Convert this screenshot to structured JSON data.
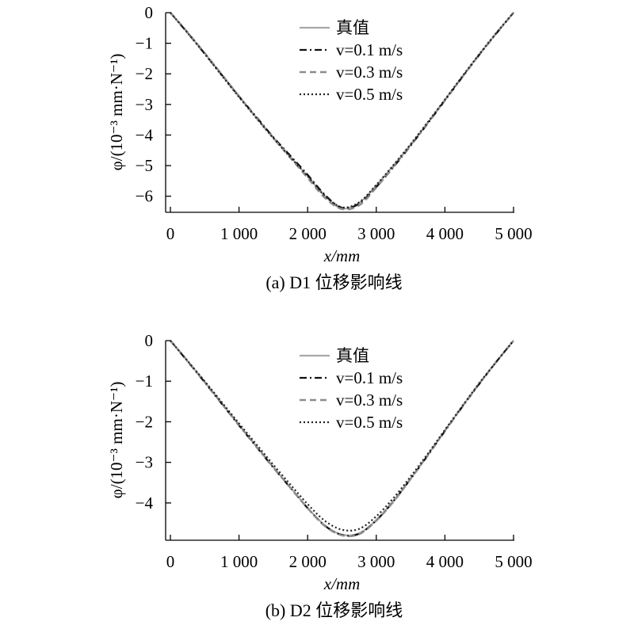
{
  "chart_data": [
    {
      "type": "line",
      "caption": "(a) D1 位移影响线",
      "xlabel": "x/mm",
      "ylabel": "φ/(10⁻³ mm·N⁻¹)",
      "xlim": [
        0,
        5000
      ],
      "ylim": [
        -6.5,
        0
      ],
      "xticks": [
        0,
        1000,
        2000,
        3000,
        4000,
        5000
      ],
      "xtick_labels": [
        "0",
        "1 000",
        "2 000",
        "3 000",
        "4 000",
        "5 000"
      ],
      "yticks": [
        0,
        -1,
        -2,
        -3,
        -4,
        -5,
        -6
      ],
      "ytick_labels": [
        "0",
        "−1",
        "−2",
        "−3",
        "−4",
        "−5",
        "−6"
      ],
      "grid": false,
      "legend_position": "top-center",
      "series": [
        {
          "name": "真值",
          "style": "solid",
          "color": "#a8a8a8",
          "x": [
            0,
            250,
            500,
            750,
            1000,
            1250,
            1500,
            1750,
            2000,
            2250,
            2500,
            2750,
            3000,
            3250,
            3500,
            3750,
            4000,
            4250,
            4500,
            4750,
            5000
          ],
          "y": [
            0,
            -0.65,
            -1.33,
            -2.03,
            -2.73,
            -3.42,
            -4.08,
            -4.72,
            -5.35,
            -6.0,
            -6.4,
            -6.22,
            -5.65,
            -5.0,
            -4.32,
            -3.6,
            -2.85,
            -2.1,
            -1.37,
            -0.67,
            0
          ]
        },
        {
          "name": "v=0.1 m/s",
          "style": "dashdot",
          "color": "#111111",
          "x": [
            0,
            250,
            500,
            750,
            1000,
            1250,
            1500,
            1750,
            2000,
            2250,
            2500,
            2750,
            3000,
            3250,
            3500,
            3750,
            4000,
            4250,
            4500,
            4750,
            5000
          ],
          "y": [
            0,
            -0.66,
            -1.34,
            -2.04,
            -2.74,
            -3.4,
            -4.07,
            -4.68,
            -5.3,
            -5.95,
            -6.38,
            -6.25,
            -5.7,
            -5.05,
            -4.35,
            -3.62,
            -2.87,
            -2.12,
            -1.38,
            -0.68,
            0
          ]
        },
        {
          "name": "v=0.3 m/s",
          "style": "dashed",
          "color": "#8c8c8c",
          "x": [
            0,
            250,
            500,
            750,
            1000,
            1250,
            1500,
            1750,
            2000,
            2250,
            2500,
            2750,
            3000,
            3250,
            3500,
            3750,
            4000,
            4250,
            4500,
            4750,
            5000
          ],
          "y": [
            0,
            -0.64,
            -1.32,
            -2.02,
            -2.73,
            -3.43,
            -4.1,
            -4.75,
            -5.4,
            -6.05,
            -6.42,
            -6.3,
            -5.72,
            -5.03,
            -4.33,
            -3.6,
            -2.86,
            -2.11,
            -1.37,
            -0.67,
            0
          ]
        },
        {
          "name": "v=0.5 m/s",
          "style": "dotted",
          "color": "#222222",
          "x": [
            0,
            250,
            500,
            750,
            1000,
            1250,
            1500,
            1750,
            2000,
            2250,
            2500,
            2750,
            3000,
            3250,
            3500,
            3750,
            4000,
            4250,
            4500,
            4750,
            5000
          ],
          "y": [
            0,
            -0.66,
            -1.35,
            -2.06,
            -2.76,
            -3.44,
            -4.1,
            -4.73,
            -5.34,
            -5.98,
            -6.36,
            -6.2,
            -5.63,
            -4.98,
            -4.3,
            -3.58,
            -2.84,
            -2.09,
            -1.36,
            -0.66,
            0
          ]
        }
      ]
    },
    {
      "type": "line",
      "caption": "(b) D2 位移影响线",
      "xlabel": "x/mm",
      "ylabel": "φ/(10⁻³ mm·N⁻¹)",
      "xlim": [
        0,
        5000
      ],
      "ylim": [
        -4.9,
        0
      ],
      "xticks": [
        0,
        1000,
        2000,
        3000,
        4000,
        5000
      ],
      "xtick_labels": [
        "0",
        "1 000",
        "2 000",
        "3 000",
        "4 000",
        "5 000"
      ],
      "yticks": [
        0,
        -1,
        -2,
        -3,
        -4
      ],
      "ytick_labels": [
        "0",
        "−1",
        "−2",
        "−3",
        "−4"
      ],
      "grid": false,
      "legend_position": "top-center",
      "series": [
        {
          "name": "真值",
          "style": "solid",
          "color": "#a8a8a8",
          "x": [
            0,
            250,
            500,
            750,
            1000,
            1250,
            1500,
            1750,
            2000,
            2250,
            2500,
            2750,
            3000,
            3250,
            3500,
            3750,
            4000,
            4250,
            4500,
            4750,
            5000
          ],
          "y": [
            0,
            -0.5,
            -1.02,
            -1.55,
            -2.08,
            -2.6,
            -3.12,
            -3.62,
            -4.12,
            -4.55,
            -4.78,
            -4.75,
            -4.42,
            -3.95,
            -3.4,
            -2.82,
            -2.22,
            -1.63,
            -1.06,
            -0.52,
            0
          ]
        },
        {
          "name": "v=0.1 m/s",
          "style": "dashdot",
          "color": "#111111",
          "x": [
            0,
            250,
            500,
            750,
            1000,
            1250,
            1500,
            1750,
            2000,
            2250,
            2500,
            2750,
            3000,
            3250,
            3500,
            3750,
            4000,
            4250,
            4500,
            4750,
            5000
          ],
          "y": [
            0,
            -0.51,
            -1.03,
            -1.56,
            -2.09,
            -2.61,
            -3.13,
            -3.63,
            -4.13,
            -4.56,
            -4.79,
            -4.76,
            -4.43,
            -3.96,
            -3.41,
            -2.83,
            -2.23,
            -1.64,
            -1.07,
            -0.52,
            0
          ]
        },
        {
          "name": "v=0.3 m/s",
          "style": "dashed",
          "color": "#8c8c8c",
          "x": [
            0,
            250,
            500,
            750,
            1000,
            1250,
            1500,
            1750,
            2000,
            2250,
            2500,
            2750,
            3000,
            3250,
            3500,
            3750,
            4000,
            4250,
            4500,
            4750,
            5000
          ],
          "y": [
            0,
            -0.5,
            -1.02,
            -1.55,
            -2.08,
            -2.6,
            -3.12,
            -3.63,
            -4.13,
            -4.57,
            -4.8,
            -4.77,
            -4.44,
            -3.97,
            -3.41,
            -2.82,
            -2.22,
            -1.63,
            -1.06,
            -0.52,
            0
          ]
        },
        {
          "name": "v=0.5 m/s",
          "style": "dotted",
          "color": "#222222",
          "x": [
            0,
            250,
            500,
            750,
            1000,
            1250,
            1500,
            1750,
            2000,
            2250,
            2500,
            2750,
            3000,
            3250,
            3500,
            3750,
            4000,
            4250,
            4500,
            4750,
            5000
          ],
          "y": [
            0,
            -0.5,
            -1.0,
            -1.52,
            -2.04,
            -2.55,
            -3.06,
            -3.55,
            -4.03,
            -4.44,
            -4.66,
            -4.64,
            -4.33,
            -3.88,
            -3.35,
            -2.79,
            -2.2,
            -1.62,
            -1.05,
            -0.52,
            0
          ]
        }
      ]
    }
  ]
}
